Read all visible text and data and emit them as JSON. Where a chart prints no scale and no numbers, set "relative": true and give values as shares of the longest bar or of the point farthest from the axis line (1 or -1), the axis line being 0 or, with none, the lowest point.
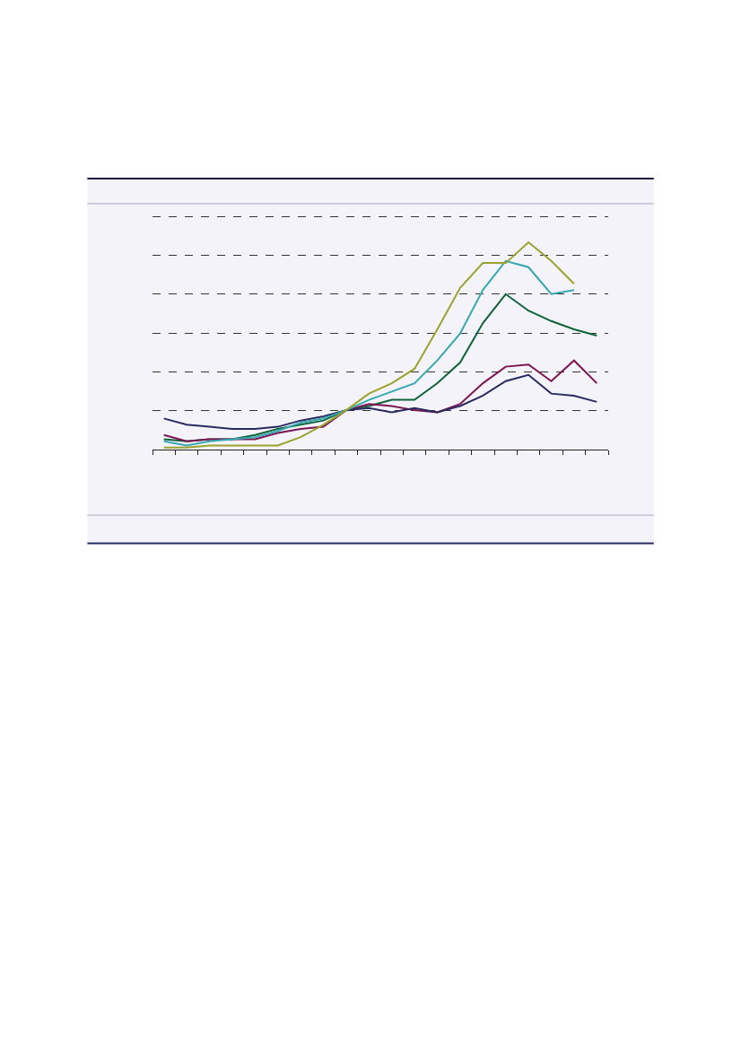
{
  "chart_data": {
    "type": "line",
    "relative": true,
    "grid": "y",
    "line_style": "solid",
    "marker": "none",
    "categories": [
      null,
      null,
      null,
      null,
      null,
      null,
      null,
      null,
      null,
      null,
      null,
      null,
      null,
      null,
      null,
      null,
      null,
      null,
      null,
      null
    ],
    "series": [
      {
        "color": "#0e6438",
        "values": [
          0.05,
          0.04,
          0.05,
          0.05,
          0.07,
          0.1,
          0.12,
          0.14,
          0.19,
          0.21,
          0.24,
          0.24,
          0.32,
          0.42,
          0.61,
          0.75,
          0.67,
          0.62,
          0.58,
          0.55
        ]
      },
      {
        "color": "#7b1554",
        "values": [
          0.07,
          0.04,
          0.05,
          0.05,
          0.05,
          0.08,
          0.1,
          0.11,
          0.19,
          0.22,
          0.21,
          0.19,
          0.18,
          0.22,
          0.32,
          0.4,
          0.41,
          0.33,
          0.43,
          0.32
        ]
      },
      {
        "color": "#2a2a62",
        "values": [
          0.15,
          0.12,
          0.11,
          0.1,
          0.1,
          0.11,
          0.14,
          0.16,
          0.19,
          0.2,
          0.18,
          0.2,
          0.18,
          0.21,
          0.26,
          0.33,
          0.36,
          0.27,
          0.26,
          0.23
        ]
      },
      {
        "color": "#35a8b0",
        "values": [
          0.04,
          0.02,
          0.04,
          0.05,
          0.06,
          0.09,
          0.13,
          0.15,
          0.19,
          0.24,
          0.28,
          0.32,
          0.43,
          0.56,
          0.77,
          0.91,
          0.88,
          0.75,
          0.77,
          null
        ]
      },
      {
        "color": "#9aa32e",
        "values": [
          0.01,
          0.01,
          0.02,
          0.02,
          0.02,
          0.02,
          0.06,
          0.12,
          0.19,
          0.27,
          0.32,
          0.39,
          0.58,
          0.78,
          0.9,
          0.9,
          1,
          0.91,
          0.8,
          null
        ]
      }
    ]
  }
}
